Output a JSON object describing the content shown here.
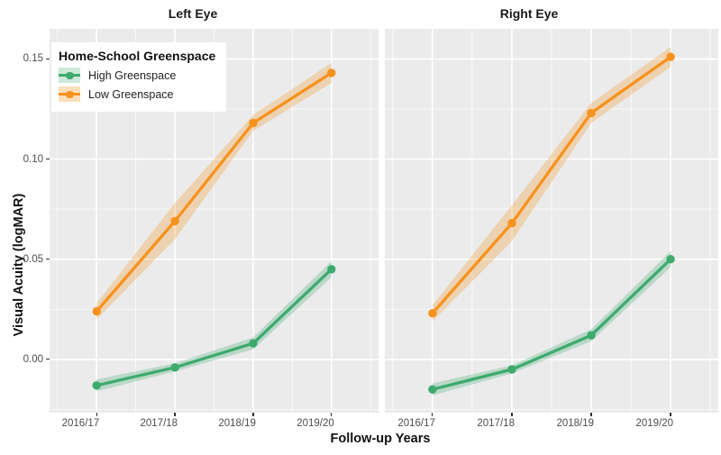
{
  "chart_data": {
    "type": "line",
    "categories": [
      "2016/17",
      "2017/18",
      "2018/19",
      "2019/20"
    ],
    "xlabel": "Follow-up Years",
    "ylabel": "Visual Acuity (logMAR)",
    "ytick_labels": [
      "0.00",
      "0.05",
      "0.10",
      "0.15"
    ],
    "y_minor": [
      -0.025,
      0.025,
      0.075,
      0.125
    ],
    "ylim": [
      -0.0266,
      0.165
    ],
    "grid": true,
    "facets": [
      {
        "label": "Left Eye",
        "series": [
          {
            "name": "High Greenspace",
            "values": [
              -0.013,
              -0.004,
              0.008,
              0.045
            ],
            "ci": [
              0.003,
              0.002,
              0.003,
              0.004
            ]
          },
          {
            "name": "Low Greenspace",
            "values": [
              0.024,
              0.069,
              0.118,
              0.143
            ],
            "ci": [
              0.004,
              0.009,
              0.004,
              0.005
            ]
          }
        ]
      },
      {
        "label": "Right Eye",
        "series": [
          {
            "name": "High Greenspace",
            "values": [
              -0.015,
              -0.005,
              0.012,
              0.05
            ],
            "ci": [
              0.003,
              0.002,
              0.003,
              0.004
            ]
          },
          {
            "name": "Low Greenspace",
            "values": [
              0.023,
              0.068,
              0.123,
              0.151
            ],
            "ci": [
              0.004,
              0.009,
              0.005,
              0.005
            ]
          }
        ]
      }
    ],
    "legend": {
      "title": "Home-School Greenspace",
      "position": "top-left-inside",
      "entries": [
        {
          "label": "High Greenspace",
          "color": "#3EAA6E",
          "ribbon": "#CDE9DA"
        },
        {
          "label": "Low Greenspace",
          "color": "#F6921E",
          "ribbon": "#FBDFBD"
        }
      ]
    },
    "colors": {
      "panel_bg": "#EBEBEB",
      "grid": "#FFFFFF",
      "axis_text": "#4D4D4D"
    }
  }
}
